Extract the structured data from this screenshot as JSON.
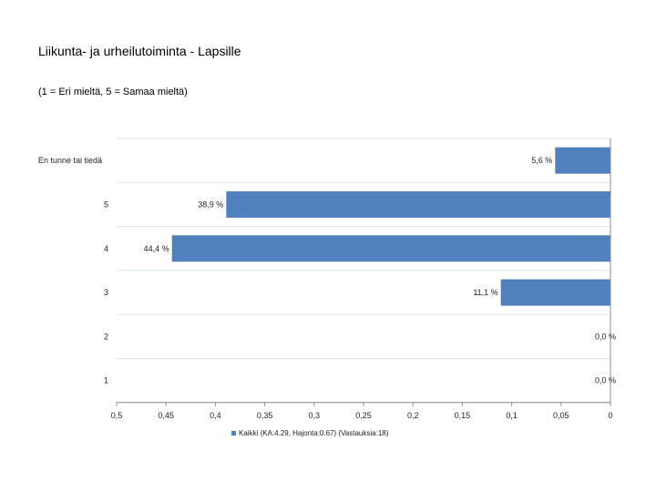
{
  "page": {
    "title": "Liikunta- ja urheilutoiminta - Lapsille",
    "subtitle": "(1 = Eri mieltä, 5 = Samaa mieltä)"
  },
  "chart_data": {
    "type": "bar",
    "orientation": "horizontal",
    "title": "Liikunta- ja urheilutoiminta - Lapsille",
    "subtitle": "(1 = Eri mieltä, 5 = Samaa mieltä)",
    "categories": [
      "En tunne tai tiedä",
      "5",
      "4",
      "3",
      "2",
      "1"
    ],
    "series": [
      {
        "name": "Kaikki (KA:4.29, Hajonta:0.67) (Vastauksia:18)",
        "values": [
          0.056,
          0.389,
          0.444,
          0.111,
          0.0,
          0.0
        ],
        "labels": [
          "5,6 %",
          "38,9 %",
          "44,4 %",
          "11,1 %",
          "0,0 %",
          "0,0 %"
        ],
        "color": "#4f81bd"
      }
    ],
    "x_axis": {
      "reversed": true,
      "range": [
        0,
        0.5
      ],
      "ticks": [
        0.5,
        0.45,
        0.4,
        0.35,
        0.3,
        0.25,
        0.2,
        0.15,
        0.1,
        0.05,
        0
      ],
      "tick_labels": [
        "0,5",
        "0,45",
        "0,4",
        "0,35",
        "0,3",
        "0,25",
        "0,2",
        "0,15",
        "0,1",
        "0,05",
        "0"
      ]
    },
    "grid": true,
    "legend": "bottom",
    "legend_label": "Kaikki (KA:4.29, Hajonta:0.67) (Vastauksia:18)",
    "gridline_color": "#d9e3ef",
    "axis_color": "#8c8c8c"
  }
}
